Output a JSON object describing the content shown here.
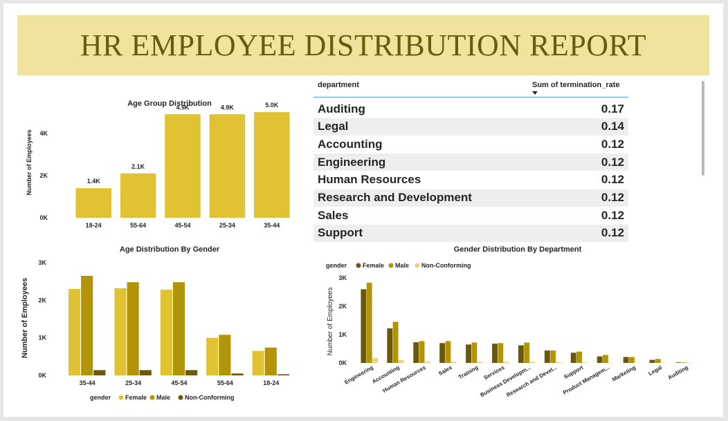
{
  "title": "HR EMPLOYEE DISTRIBUTION REPORT",
  "colors": {
    "banner": "#efe39e",
    "title": "#6b5a0c",
    "bar": "#e1c233",
    "female_bright": "#e1c233",
    "male_mid": "#b29408",
    "nonconf_dark": "#6a580c",
    "nonconf_light": "#ead37a"
  },
  "table": {
    "headers": [
      "department",
      "Sum of termination_rate"
    ],
    "rows": [
      {
        "department": "Auditing",
        "value": "0.17"
      },
      {
        "department": "Legal",
        "value": "0.14"
      },
      {
        "department": "Accounting",
        "value": "0.12"
      },
      {
        "department": "Engineering",
        "value": "0.12"
      },
      {
        "department": "Human Resources",
        "value": "0.12"
      },
      {
        "department": "Research and Development",
        "value": "0.12"
      },
      {
        "department": "Sales",
        "value": "0.12"
      },
      {
        "department": "Support",
        "value": "0.12"
      }
    ]
  },
  "chart_data": [
    {
      "id": "age-group",
      "type": "bar",
      "title": "Age Group Distribution",
      "xlabel": "",
      "ylabel": "Number of Employees",
      "categories": [
        "18-24",
        "55-64",
        "45-54",
        "25-34",
        "35-44"
      ],
      "values": [
        1400,
        2100,
        4900,
        4900,
        5000
      ],
      "data_labels": [
        "1.4K",
        "2.1K",
        "4.9K",
        "4.9K",
        "5.0K"
      ],
      "yticks": [
        0,
        2000,
        4000
      ],
      "ytick_labels": [
        "0K",
        "2K",
        "4K"
      ],
      "ylim": [
        0,
        5400
      ],
      "grid": false
    },
    {
      "id": "age-gender",
      "type": "bar",
      "title": "Age Distribution By Gender",
      "xlabel": "",
      "ylabel": "Number of Employees",
      "legend_title": "gender",
      "legend_position": "bottom",
      "categories": [
        "35-44",
        "25-34",
        "45-54",
        "55-64",
        "18-24"
      ],
      "series": [
        {
          "name": "Female",
          "color": "#e1c233",
          "values": [
            2300,
            2320,
            2280,
            1000,
            650
          ]
        },
        {
          "name": "Male",
          "color": "#b29408",
          "values": [
            2650,
            2480,
            2480,
            1080,
            740
          ]
        },
        {
          "name": "Non-Conforming",
          "color": "#6a580c",
          "values": [
            140,
            140,
            140,
            50,
            30
          ]
        }
      ],
      "yticks": [
        0,
        1000,
        2000,
        3000
      ],
      "ytick_labels": [
        "0K",
        "1K",
        "2K",
        "3K"
      ],
      "ylim": [
        0,
        3000
      ],
      "grid": false
    },
    {
      "id": "gender-dept",
      "type": "bar",
      "title": "Gender Distribution By Department",
      "xlabel": "",
      "ylabel": "Number of Employees",
      "legend_title": "gender",
      "legend_position": "top-left",
      "categories": [
        "Engineering",
        "Accounting",
        "Human Resources",
        "Sales",
        "Training",
        "Services",
        "Business Developm...",
        "Research and Devel...",
        "Support",
        "Product Managem...",
        "Marketing",
        "Legal",
        "Auditing"
      ],
      "series": [
        {
          "name": "Female",
          "color": "#6a580c",
          "values": [
            2600,
            1220,
            730,
            700,
            650,
            680,
            620,
            440,
            360,
            230,
            210,
            110,
            20
          ]
        },
        {
          "name": "Male",
          "color": "#b29408",
          "values": [
            2830,
            1450,
            770,
            770,
            720,
            700,
            720,
            440,
            400,
            280,
            210,
            140,
            20
          ]
        },
        {
          "name": "Non-Conforming",
          "color": "#ead37a",
          "values": [
            170,
            100,
            50,
            50,
            40,
            40,
            40,
            30,
            20,
            10,
            10,
            5,
            2
          ]
        }
      ],
      "yticks": [
        0,
        1000,
        2000,
        3000
      ],
      "ytick_labels": [
        "0K",
        "1K",
        "2K",
        "3K"
      ],
      "ylim": [
        0,
        3000
      ],
      "grid": false
    }
  ]
}
